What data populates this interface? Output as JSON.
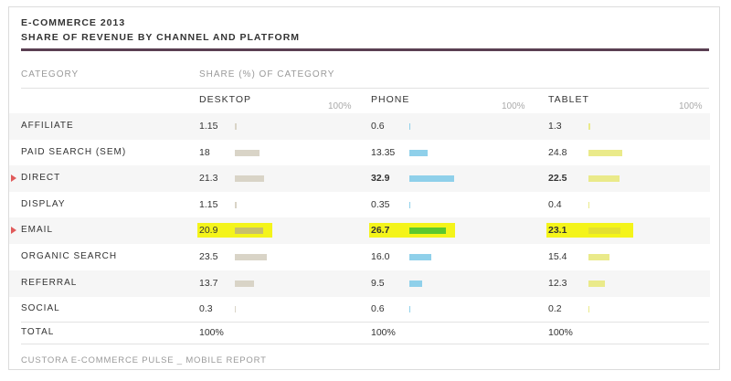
{
  "title": "E-COMMERCE 2013",
  "subtitle": "SHARE OF REVENUE BY CHANNEL AND PLATFORM",
  "header": {
    "category": "CATEGORY",
    "share": "SHARE (%) OF CATEGORY"
  },
  "columns": [
    {
      "label": "DESKTOP",
      "max_label": "100%"
    },
    {
      "label": "PHONE",
      "max_label": "100%"
    },
    {
      "label": "TABLET",
      "max_label": "100%"
    }
  ],
  "colors": {
    "desktop": "#d9d4c7",
    "phone": "#8fd0ea",
    "tablet": "#eaea8a",
    "marker": "#e05a5a",
    "highlight": "#f4f41a",
    "email_desktop": "#c8bf6a",
    "email_phone": "#5cc82e",
    "email_tablet": "#e4e030"
  },
  "chart_data": {
    "type": "table",
    "title": "E-COMMERCE 2013",
    "subtitle": "SHARE OF REVENUE BY CHANNEL AND PLATFORM",
    "categories": [
      "AFFILIATE",
      "PAID SEARCH (SEM)",
      "DIRECT",
      "DISPLAY",
      "EMAIL",
      "ORGANIC SEARCH",
      "REFERRAL",
      "SOCIAL"
    ],
    "series": [
      {
        "name": "DESKTOP",
        "values": [
          1.15,
          18,
          21.3,
          1.15,
          20.9,
          23.5,
          13.7,
          0.3
        ]
      },
      {
        "name": "PHONE",
        "values": [
          0.6,
          13.35,
          32.9,
          0.35,
          26.7,
          16.0,
          9.5,
          0.6
        ]
      },
      {
        "name": "TABLET",
        "values": [
          1.3,
          24.8,
          22.5,
          0.4,
          23.1,
          15.4,
          12.3,
          0.2
        ]
      }
    ],
    "display_values": [
      [
        "1.15",
        "18",
        "21.3",
        "1.15",
        "20.9",
        "23.5",
        "13.7",
        "0.3"
      ],
      [
        "0.6",
        "13.35",
        "32.9",
        "0.35",
        "26.7",
        "16.0",
        "9.5",
        "0.6"
      ],
      [
        "1.3",
        "24.8",
        "22.5",
        "0.4",
        "23.1",
        "15.4",
        "12.3",
        "0.2"
      ]
    ],
    "marked_rows": [
      "DIRECT",
      "EMAIL"
    ],
    "highlighted_rows": [
      "EMAIL"
    ],
    "bold_cells": {
      "DIRECT": [
        "PHONE",
        "TABLET"
      ],
      "EMAIL": [
        "PHONE",
        "TABLET"
      ]
    },
    "max": 100
  },
  "total": {
    "label": "TOTAL",
    "values": [
      "100%",
      "100%",
      "100%"
    ]
  },
  "footer": "CUSTORA E-COMMERCE PULSE _ MOBILE REPORT"
}
